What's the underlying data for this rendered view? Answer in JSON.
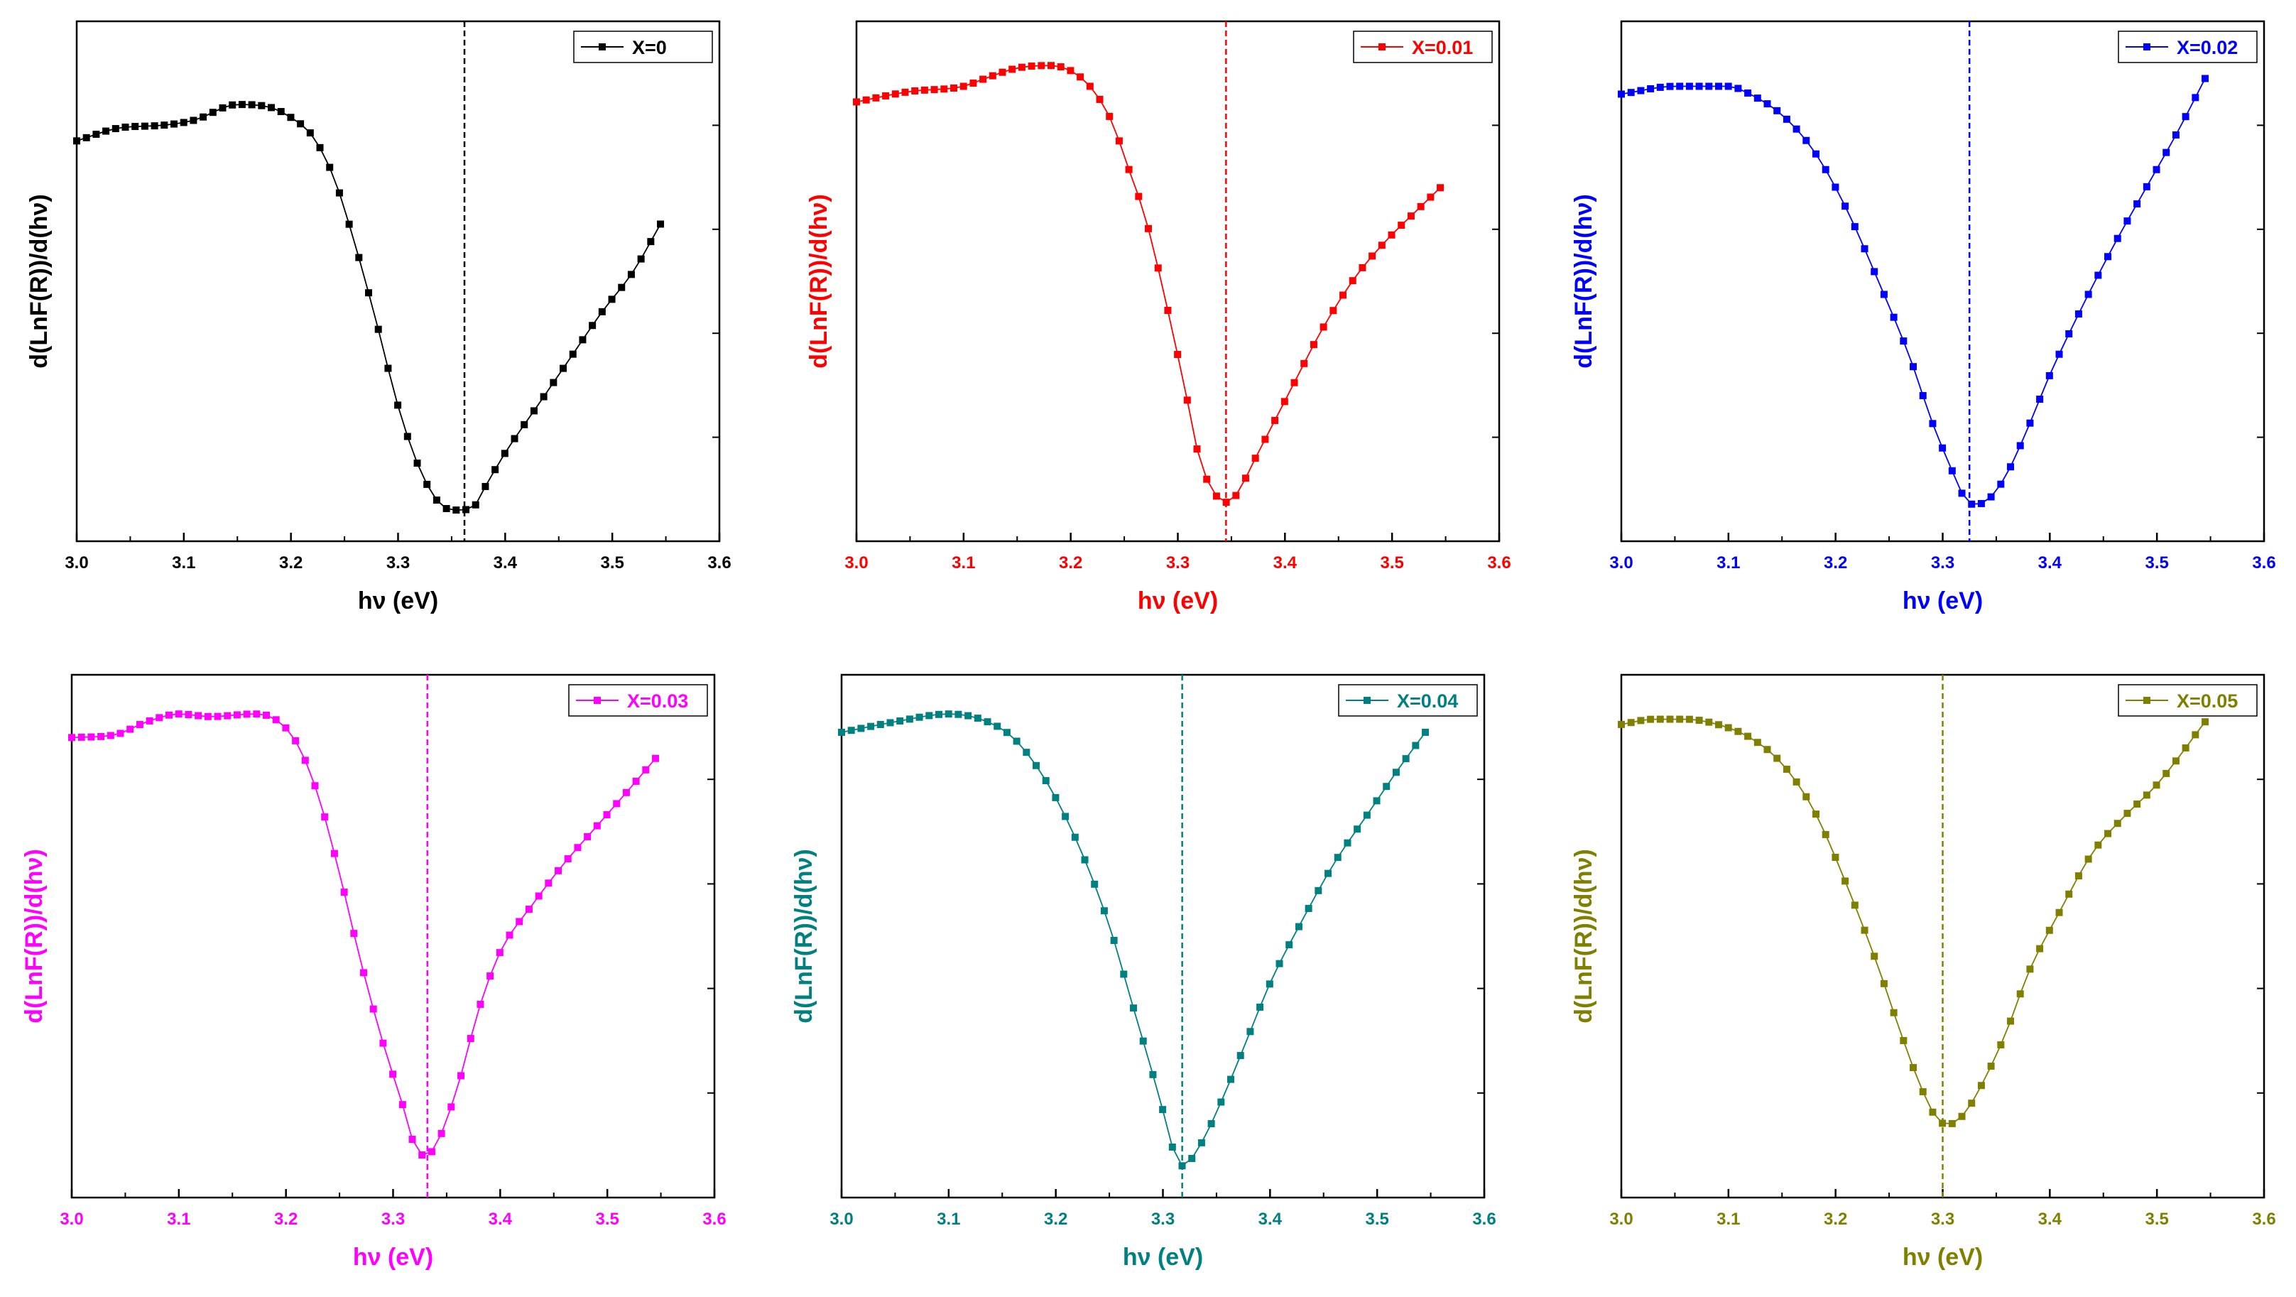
{
  "figure": {
    "panels": 6,
    "layout": "2 rows x 3 columns"
  },
  "chart_data": [
    {
      "type": "line",
      "panel": "top-left",
      "color": "#000000",
      "legend": "X=0",
      "legend_position": "top-right",
      "xlabel": "hν (eV)",
      "ylabel": "d(LnF(R))/d(hν)",
      "xlim": [
        3.0,
        3.6
      ],
      "ylim": [
        0,
        1
      ],
      "xticks": [
        "3.0",
        "3.1",
        "3.2",
        "3.3",
        "3.4",
        "3.5",
        "3.6"
      ],
      "y_tick_labels": false,
      "vline": 3.362,
      "x_start": 3.0,
      "x_end": 3.545,
      "curve": [
        [
          3.0,
          0.77
        ],
        [
          3.04,
          0.795
        ],
        [
          3.08,
          0.8
        ],
        [
          3.11,
          0.81
        ],
        [
          3.15,
          0.84
        ],
        [
          3.18,
          0.835
        ],
        [
          3.2,
          0.815
        ],
        [
          3.22,
          0.78
        ],
        [
          3.24,
          0.7
        ],
        [
          3.26,
          0.57
        ],
        [
          3.28,
          0.42
        ],
        [
          3.3,
          0.26
        ],
        [
          3.32,
          0.14
        ],
        [
          3.34,
          0.07
        ],
        [
          3.355,
          0.06
        ],
        [
          3.37,
          0.065
        ],
        [
          3.38,
          0.1
        ],
        [
          3.4,
          0.17
        ],
        [
          3.43,
          0.26
        ],
        [
          3.46,
          0.35
        ],
        [
          3.49,
          0.44
        ],
        [
          3.52,
          0.52
        ],
        [
          3.545,
          0.61
        ]
      ]
    },
    {
      "type": "line",
      "panel": "top-middle",
      "color": "#ff0000",
      "legend": "X=0.01",
      "legend_position": "top-right",
      "xlabel": "hν (eV)",
      "ylabel": "d(LnF(R))/d(hν)",
      "xlim": [
        3.0,
        3.6
      ],
      "ylim": [
        0,
        1
      ],
      "xticks": [
        "3.0",
        "3.1",
        "3.2",
        "3.3",
        "3.4",
        "3.5",
        "3.6"
      ],
      "y_tick_labels": false,
      "vline": 3.345,
      "x_start": 3.0,
      "x_end": 3.545,
      "curve": [
        [
          3.0,
          0.845
        ],
        [
          3.05,
          0.865
        ],
        [
          3.1,
          0.875
        ],
        [
          3.12,
          0.89
        ],
        [
          3.15,
          0.91
        ],
        [
          3.18,
          0.915
        ],
        [
          3.2,
          0.905
        ],
        [
          3.22,
          0.87
        ],
        [
          3.24,
          0.8
        ],
        [
          3.25,
          0.74
        ],
        [
          3.27,
          0.62
        ],
        [
          3.29,
          0.45
        ],
        [
          3.31,
          0.26
        ],
        [
          3.32,
          0.16
        ],
        [
          3.335,
          0.09
        ],
        [
          3.345,
          0.075
        ],
        [
          3.355,
          0.09
        ],
        [
          3.37,
          0.15
        ],
        [
          3.39,
          0.23
        ],
        [
          3.41,
          0.31
        ],
        [
          3.43,
          0.39
        ],
        [
          3.45,
          0.46
        ],
        [
          3.47,
          0.52
        ],
        [
          3.5,
          0.59
        ],
        [
          3.52,
          0.63
        ],
        [
          3.545,
          0.68
        ]
      ]
    },
    {
      "type": "line",
      "panel": "top-right",
      "color": "#0000ff",
      "legend": "X=0.02",
      "legend_position": "top-right",
      "xlabel": "hν (eV)",
      "ylabel": "d(LnF(R))/d(hν)",
      "xlim": [
        3.0,
        3.6
      ],
      "ylim": [
        0,
        1
      ],
      "xticks": [
        "3.0",
        "3.1",
        "3.2",
        "3.3",
        "3.4",
        "3.5",
        "3.6"
      ],
      "y_tick_labels": false,
      "vline": 3.325,
      "x_start": 3.0,
      "x_end": 3.545,
      "curve": [
        [
          3.0,
          0.86
        ],
        [
          3.05,
          0.875
        ],
        [
          3.1,
          0.875
        ],
        [
          3.12,
          0.86
        ],
        [
          3.15,
          0.82
        ],
        [
          3.18,
          0.75
        ],
        [
          3.21,
          0.64
        ],
        [
          3.24,
          0.5
        ],
        [
          3.27,
          0.35
        ],
        [
          3.29,
          0.23
        ],
        [
          3.31,
          0.13
        ],
        [
          3.32,
          0.085
        ],
        [
          3.33,
          0.07
        ],
        [
          3.345,
          0.085
        ],
        [
          3.36,
          0.13
        ],
        [
          3.38,
          0.22
        ],
        [
          3.4,
          0.32
        ],
        [
          3.43,
          0.45
        ],
        [
          3.46,
          0.57
        ],
        [
          3.49,
          0.68
        ],
        [
          3.52,
          0.79
        ],
        [
          3.545,
          0.89
        ]
      ]
    },
    {
      "type": "line",
      "panel": "bottom-left",
      "color": "#ff00ff",
      "legend": "X=0.03",
      "legend_position": "top-right",
      "xlabel": "hν (eV)",
      "ylabel": "d(LnF(R))/d(hν)",
      "xlim": [
        3.0,
        3.6
      ],
      "ylim": [
        0,
        1
      ],
      "xticks": [
        "3.0",
        "3.1",
        "3.2",
        "3.3",
        "3.4",
        "3.5",
        "3.6"
      ],
      "y_tick_labels": false,
      "vline": 3.332,
      "x_start": 3.0,
      "x_end": 3.545,
      "curve": [
        [
          3.0,
          0.88
        ],
        [
          3.04,
          0.885
        ],
        [
          3.07,
          0.91
        ],
        [
          3.1,
          0.925
        ],
        [
          3.13,
          0.92
        ],
        [
          3.17,
          0.925
        ],
        [
          3.19,
          0.915
        ],
        [
          3.21,
          0.87
        ],
        [
          3.23,
          0.77
        ],
        [
          3.25,
          0.62
        ],
        [
          3.27,
          0.45
        ],
        [
          3.29,
          0.3
        ],
        [
          3.31,
          0.17
        ],
        [
          3.32,
          0.1
        ],
        [
          3.33,
          0.08
        ],
        [
          3.34,
          0.1
        ],
        [
          3.36,
          0.21
        ],
        [
          3.38,
          0.36
        ],
        [
          3.4,
          0.47
        ],
        [
          3.43,
          0.56
        ],
        [
          3.46,
          0.64
        ],
        [
          3.49,
          0.71
        ],
        [
          3.52,
          0.78
        ],
        [
          3.545,
          0.84
        ]
      ]
    },
    {
      "type": "line",
      "panel": "bottom-middle",
      "color": "#008080",
      "legend": "X=0.04",
      "legend_position": "top-right",
      "xlabel": "hν (eV)",
      "ylabel": "d(LnF(R))/d(hν)",
      "xlim": [
        3.0,
        3.6
      ],
      "ylim": [
        0,
        1
      ],
      "xticks": [
        "3.0",
        "3.1",
        "3.2",
        "3.3",
        "3.4",
        "3.5",
        "3.6"
      ],
      "y_tick_labels": false,
      "vline": 3.318,
      "x_start": 3.0,
      "x_end": 3.545,
      "curve": [
        [
          3.0,
          0.89
        ],
        [
          3.05,
          0.91
        ],
        [
          3.1,
          0.925
        ],
        [
          3.13,
          0.915
        ],
        [
          3.16,
          0.88
        ],
        [
          3.19,
          0.8
        ],
        [
          3.22,
          0.68
        ],
        [
          3.25,
          0.52
        ],
        [
          3.27,
          0.38
        ],
        [
          3.29,
          0.24
        ],
        [
          3.305,
          0.13
        ],
        [
          3.315,
          0.06
        ],
        [
          3.325,
          0.07
        ],
        [
          3.34,
          0.12
        ],
        [
          3.36,
          0.21
        ],
        [
          3.38,
          0.31
        ],
        [
          3.4,
          0.41
        ],
        [
          3.43,
          0.53
        ],
        [
          3.46,
          0.64
        ],
        [
          3.49,
          0.73
        ],
        [
          3.52,
          0.82
        ],
        [
          3.545,
          0.89
        ]
      ]
    },
    {
      "type": "line",
      "panel": "bottom-right",
      "color": "#808000",
      "legend": "X=0.05",
      "legend_position": "top-right",
      "xlabel": "hν (eV)",
      "ylabel": "d(LnF(R))/d(hν)",
      "xlim": [
        3.0,
        3.6
      ],
      "ylim": [
        0,
        1
      ],
      "xticks": [
        "3.0",
        "3.1",
        "3.2",
        "3.3",
        "3.4",
        "3.5",
        "3.6"
      ],
      "y_tick_labels": false,
      "vline": 3.3,
      "x_start": 3.0,
      "x_end": 3.545,
      "curve": [
        [
          3.0,
          0.905
        ],
        [
          3.03,
          0.915
        ],
        [
          3.06,
          0.915
        ],
        [
          3.09,
          0.905
        ],
        [
          3.12,
          0.88
        ],
        [
          3.15,
          0.83
        ],
        [
          3.18,
          0.74
        ],
        [
          3.21,
          0.6
        ],
        [
          3.24,
          0.44
        ],
        [
          3.26,
          0.32
        ],
        [
          3.28,
          0.21
        ],
        [
          3.295,
          0.15
        ],
        [
          3.305,
          0.14
        ],
        [
          3.32,
          0.16
        ],
        [
          3.34,
          0.23
        ],
        [
          3.36,
          0.32
        ],
        [
          3.38,
          0.43
        ],
        [
          3.41,
          0.55
        ],
        [
          3.44,
          0.66
        ],
        [
          3.47,
          0.73
        ],
        [
          3.5,
          0.79
        ],
        [
          3.545,
          0.91
        ]
      ]
    }
  ]
}
